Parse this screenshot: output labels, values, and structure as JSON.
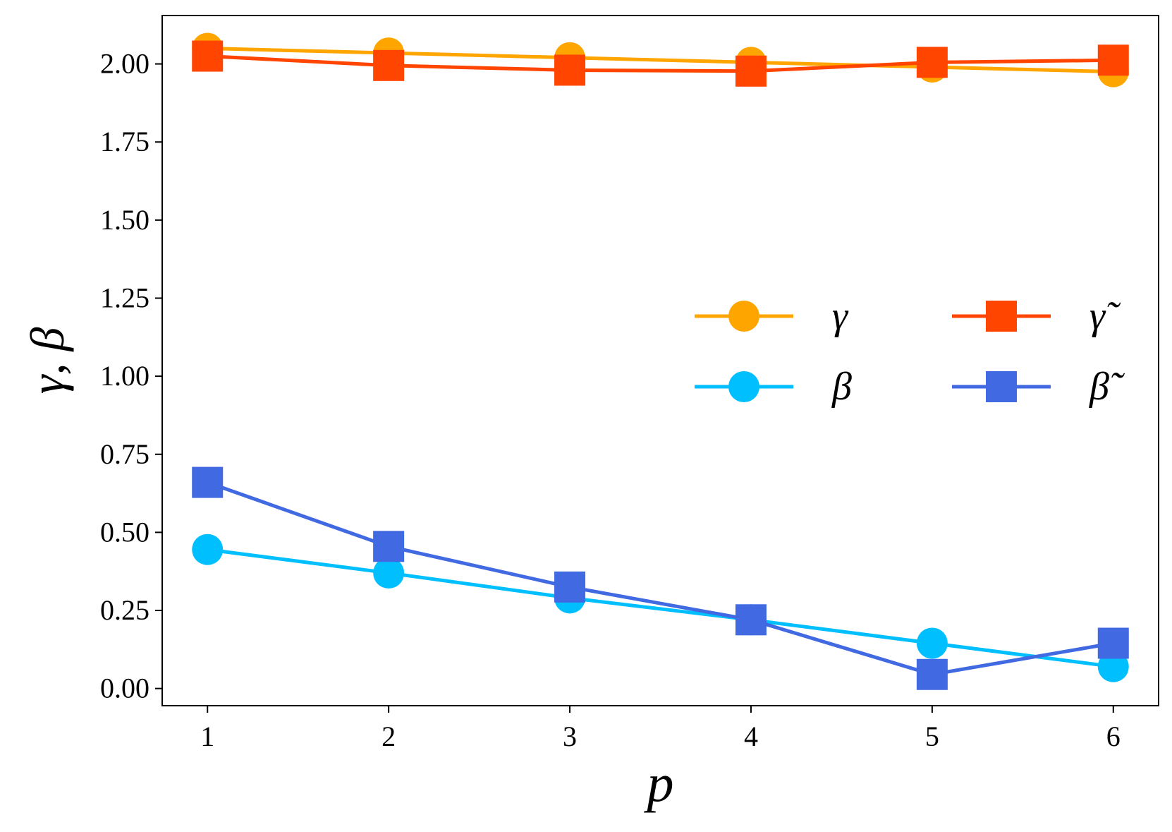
{
  "chart_data": {
    "type": "line",
    "title": "",
    "xlabel": "p",
    "ylabel": "γ, β",
    "x": [
      1,
      2,
      3,
      4,
      5,
      6
    ],
    "xlim": [
      0.75,
      6.25
    ],
    "ylim": [
      -0.055,
      2.155
    ],
    "xticks": [
      1,
      2,
      3,
      4,
      5,
      6
    ],
    "xtick_labels": [
      "1",
      "2",
      "3",
      "4",
      "5",
      "6"
    ],
    "yticks": [
      0,
      0.25,
      0.5,
      0.75,
      1.0,
      1.25,
      1.5,
      1.75,
      2.0
    ],
    "ytick_labels": [
      "0.00",
      "0.25",
      "0.50",
      "0.75",
      "1.00",
      "1.25",
      "1.50",
      "1.75",
      "2.00"
    ],
    "grid": false,
    "legend_position": "center-right",
    "legend_columns": 2,
    "series": [
      {
        "name": "γ",
        "marker": "circle",
        "color": "#FFA500",
        "values": [
          2.05,
          2.035,
          2.02,
          2.005,
          1.99,
          1.975
        ]
      },
      {
        "name": "β",
        "marker": "circle",
        "color": "#00BFFF",
        "values": [
          0.445,
          0.37,
          0.29,
          0.22,
          0.145,
          0.07
        ]
      },
      {
        "name": "γ̃",
        "marker": "square",
        "color": "#FF4500",
        "values": [
          2.025,
          1.995,
          1.98,
          1.977,
          2.005,
          2.012
        ]
      },
      {
        "name": "β̃",
        "marker": "square",
        "color": "#4169E1",
        "values": [
          0.66,
          0.455,
          0.325,
          0.22,
          0.045,
          0.145
        ]
      }
    ]
  }
}
